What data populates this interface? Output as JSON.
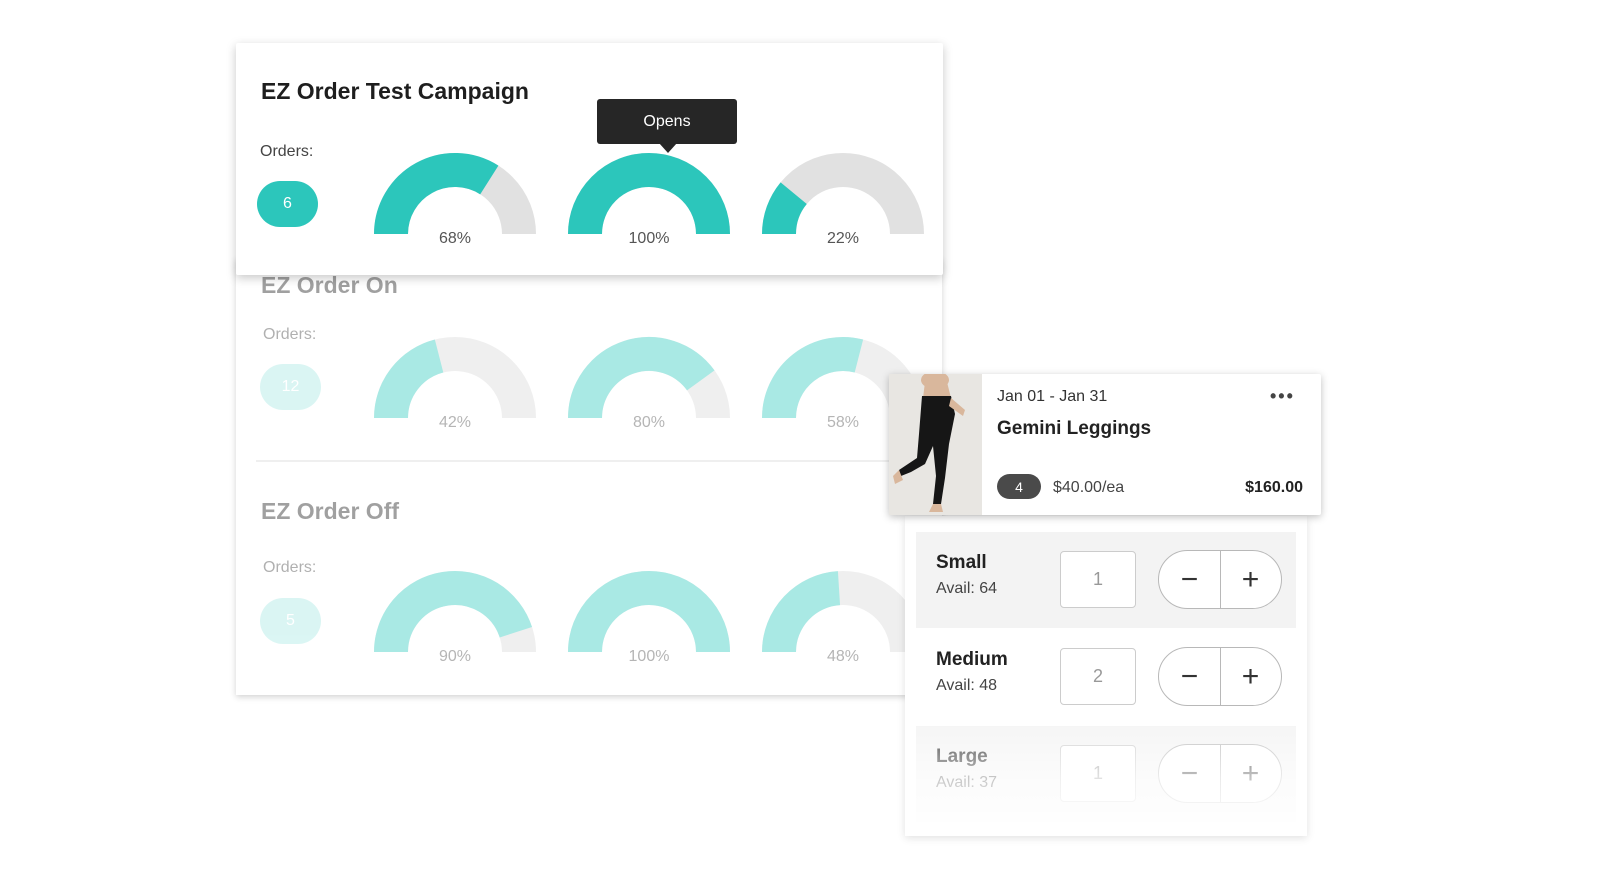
{
  "colors": {
    "accent": "#2cc6bb",
    "accent_faded": "#a9e9e4",
    "track": "#e1e1e1",
    "track_faded": "#efefef",
    "tooltip_bg": "#262626"
  },
  "campaigns": [
    {
      "title": "EZ Order Test Campaign",
      "orders_label": "Orders:",
      "orders": "6",
      "gauges": [
        {
          "value": 68,
          "label": "68%"
        },
        {
          "value": 100,
          "label": "100%"
        },
        {
          "value": 22,
          "label": "22%"
        }
      ],
      "tooltip": "Opens"
    },
    {
      "title": "EZ Order On",
      "orders_label": "Orders:",
      "orders": "12",
      "gauges": [
        {
          "value": 42,
          "label": "42%"
        },
        {
          "value": 80,
          "label": "80%"
        },
        {
          "value": 58,
          "label": "58%"
        }
      ]
    },
    {
      "title": "EZ Order Off",
      "orders_label": "Orders:",
      "orders": "5",
      "gauges": [
        {
          "value": 90,
          "label": "90%"
        },
        {
          "value": 100,
          "label": "100%"
        },
        {
          "value": 48,
          "label": "48%"
        }
      ]
    }
  ],
  "product": {
    "image_icon": "leggings-photo",
    "date_range": "Jan 01 - Jan 31",
    "more_icon": "ellipsis-icon",
    "name": "Gemini Leggings",
    "quantity": "4",
    "unit_price": "$40.00/ea",
    "total": "$160.00"
  },
  "sizes": [
    {
      "name": "Small",
      "avail": "Avail: 64",
      "qty": "1"
    },
    {
      "name": "Medium",
      "avail": "Avail: 48",
      "qty": "2"
    },
    {
      "name": "Large",
      "avail": "Avail: 37",
      "qty": "1"
    }
  ],
  "stepper": {
    "minus": "−",
    "plus": "+"
  }
}
